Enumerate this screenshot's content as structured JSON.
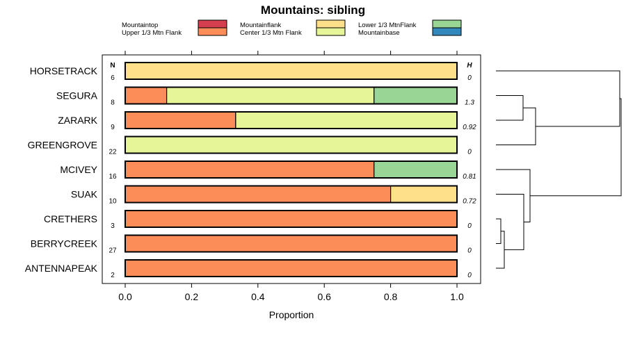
{
  "chart_data": {
    "type": "bar",
    "orientation": "horizontal",
    "stacked": true,
    "title": "Mountains: sibling",
    "xlabel": "Proportion",
    "ylabel": "",
    "xlim": [
      0,
      1
    ],
    "xticks": [
      "0.0",
      "0.2",
      "0.4",
      "0.6",
      "0.8",
      "1.0"
    ],
    "n_header": "N",
    "h_header": "H",
    "categories": [
      "HORSETRACK",
      "SEGURA",
      "ZARARK",
      "GREENGROVE",
      "MCIVEY",
      "SUAK",
      "CRETHERS",
      "BERRYCREEK",
      "ANTENNAPEAK"
    ],
    "n_values": [
      "6",
      "8",
      "9",
      "22",
      "16",
      "10",
      "3",
      "27",
      "2"
    ],
    "h_values": [
      "0",
      "1.3",
      "0.92",
      "0",
      "0.81",
      "0.72",
      "0",
      "0",
      "0"
    ],
    "series": [
      {
        "name": "Mountaintop",
        "color": "#d53e4f",
        "values": [
          0,
          0,
          0,
          0,
          0,
          0,
          0,
          0,
          0
        ]
      },
      {
        "name": "Upper 1/3 Mtn Flank",
        "color": "#fc8d59",
        "values": [
          0,
          0.125,
          0.333,
          0,
          0.75,
          0.8,
          1,
          1,
          1
        ]
      },
      {
        "name": "Mountainflank",
        "color": "#fee08b",
        "values": [
          1,
          0,
          0,
          0,
          0,
          0.2,
          0,
          0,
          0
        ]
      },
      {
        "name": "Center 1/3 Mtn Flank",
        "color": "#e6f598",
        "values": [
          0,
          0.625,
          0.667,
          1,
          0,
          0,
          0,
          0,
          0
        ]
      },
      {
        "name": "Lower 1/3 MtnFlank",
        "color": "#99d594",
        "values": [
          0,
          0.25,
          0,
          0,
          0.25,
          0,
          0,
          0,
          0
        ]
      },
      {
        "name": "Mountainbase",
        "color": "#3288bd",
        "values": [
          0,
          0,
          0,
          0,
          0,
          0,
          0,
          0,
          0
        ]
      }
    ],
    "dendrogram": "hierarchical clustering of sites shown to the right of the plot"
  }
}
